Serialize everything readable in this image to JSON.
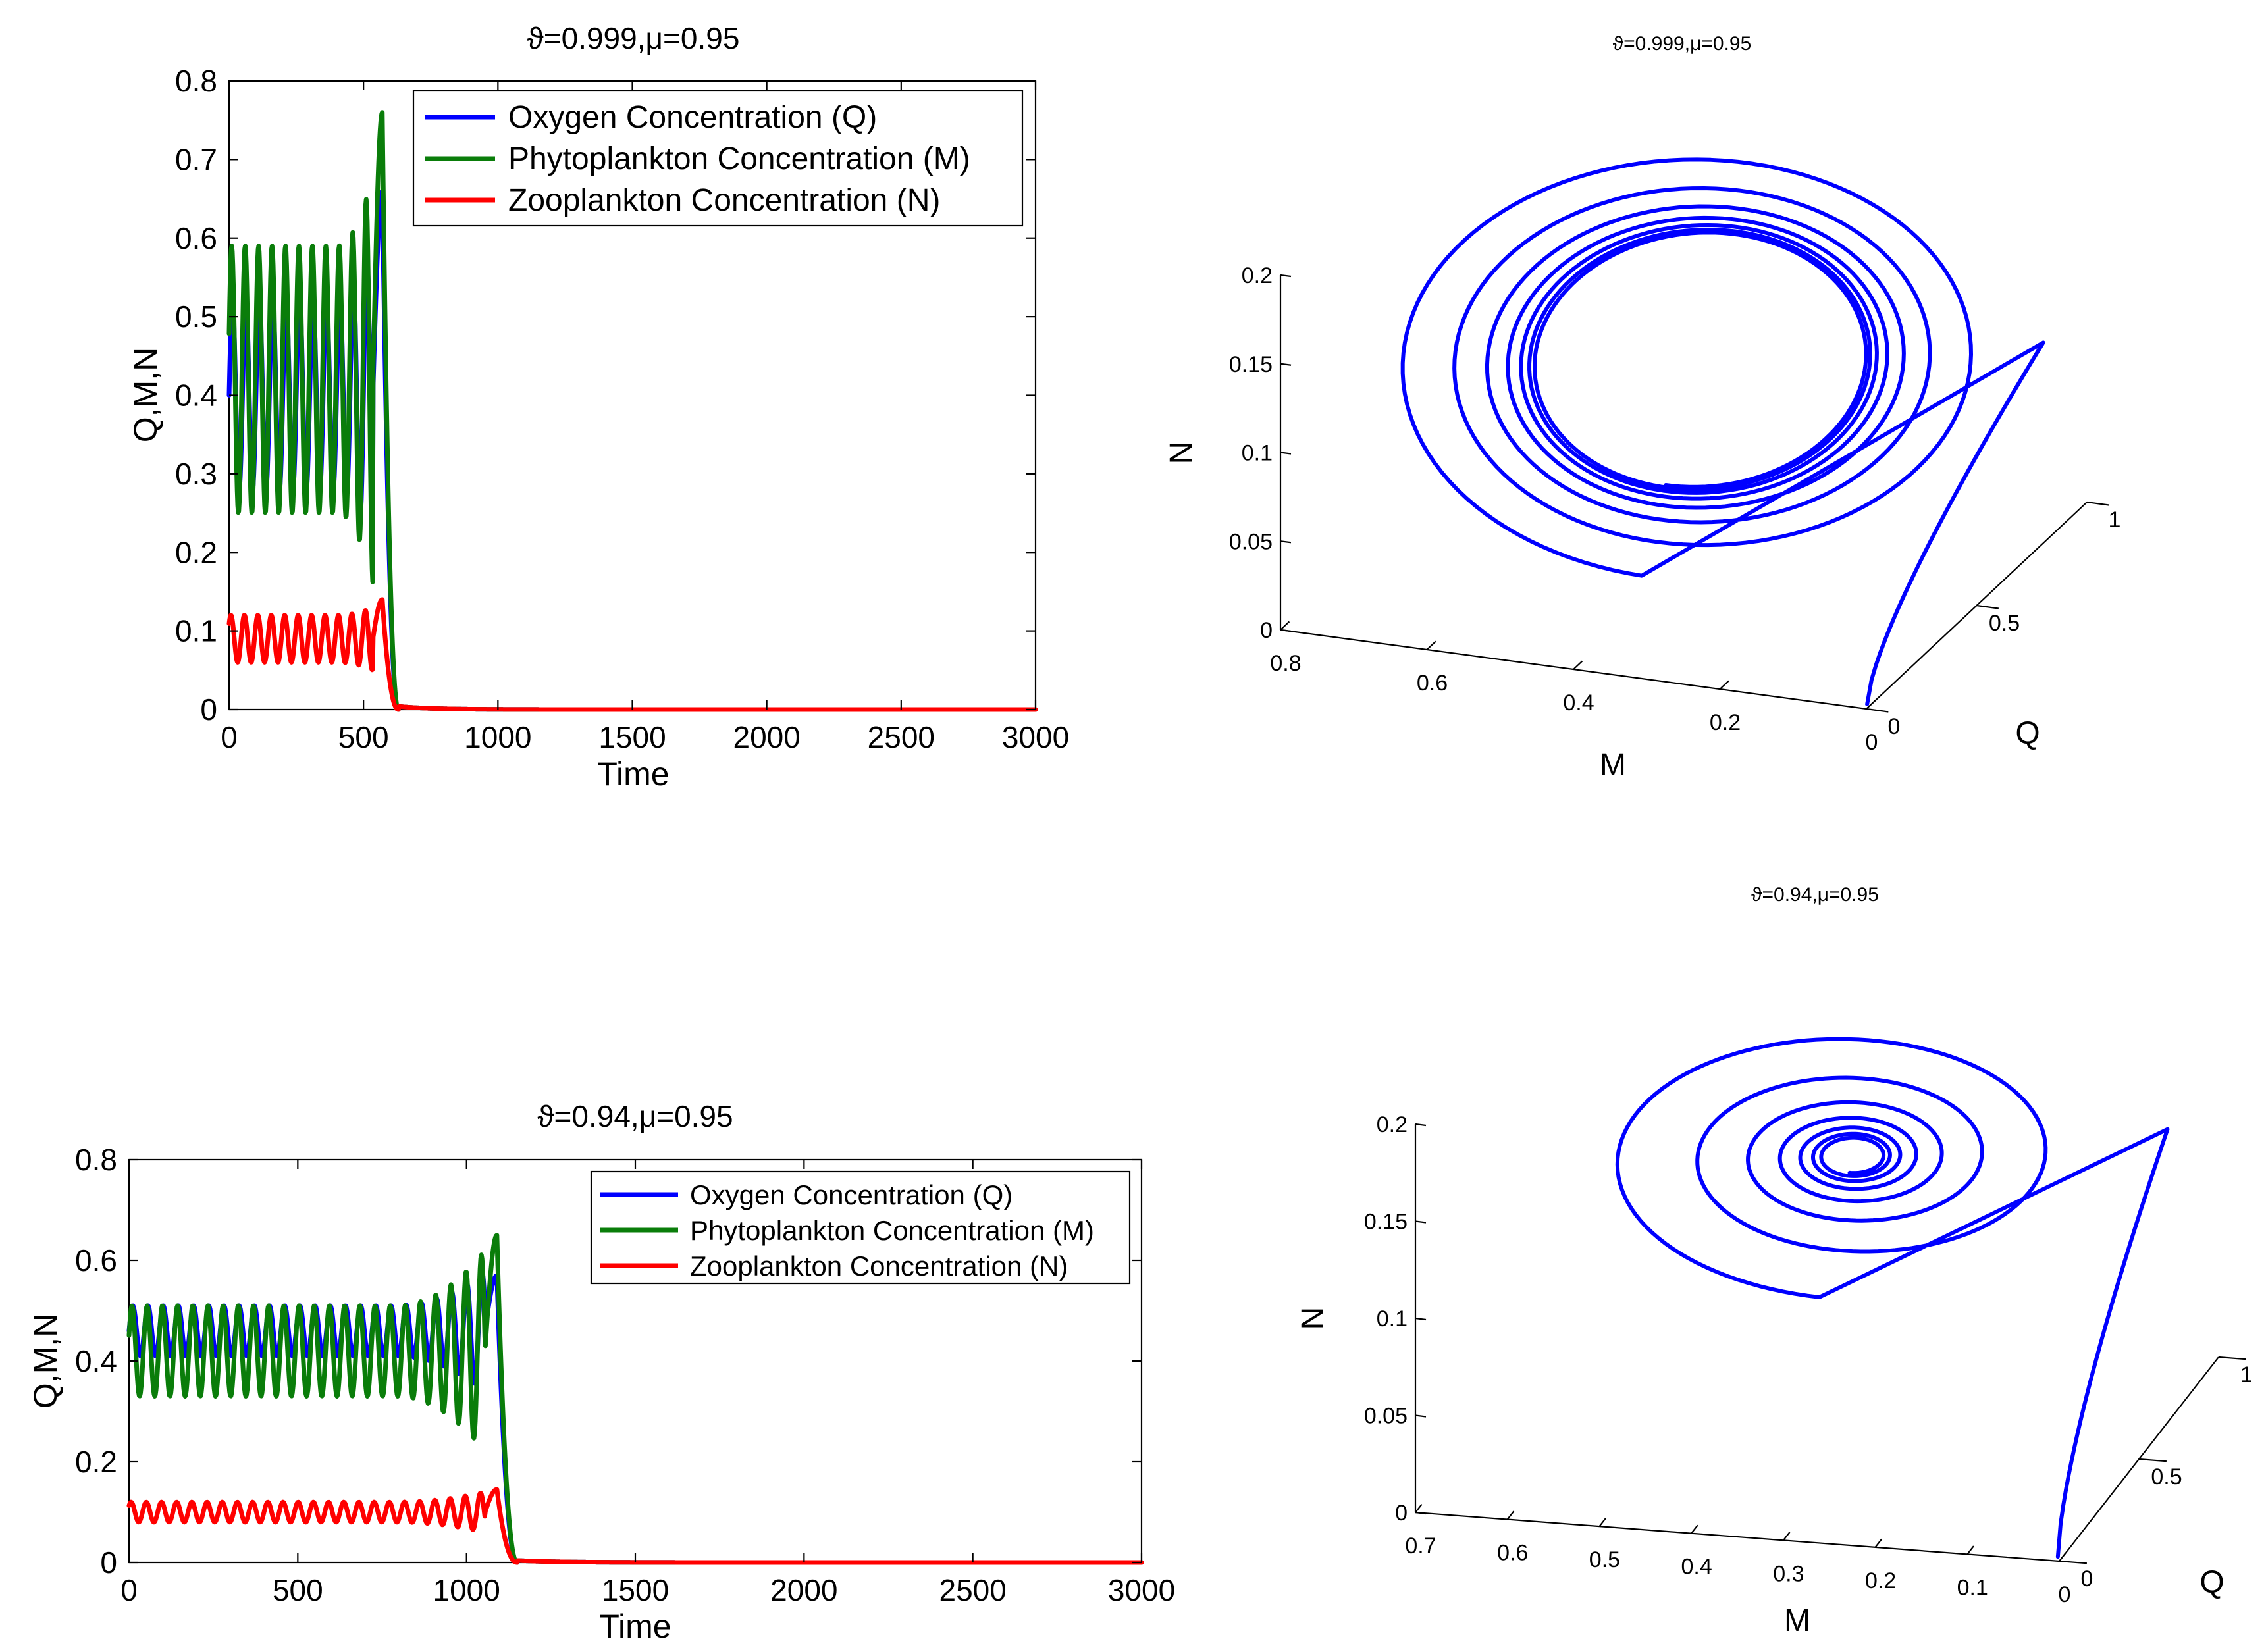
{
  "colors": {
    "oxygen": "#0000ff",
    "phyto": "#0a7d0a",
    "zoo": "#ff0000",
    "trajectory": "#0000ff"
  },
  "chart_data": [
    {
      "id": "ts_top",
      "type": "line",
      "title": "ϑ=0.999,μ=0.95",
      "xlabel": "Time",
      "ylabel": "Q,M,N",
      "xlim": [
        0,
        3000
      ],
      "ylim": [
        0,
        0.8
      ],
      "xticks": [
        0,
        500,
        1000,
        1500,
        2000,
        2500,
        3000
      ],
      "yticks": [
        0,
        0.1,
        0.2,
        0.3,
        0.4,
        0.5,
        0.6,
        0.7,
        0.8
      ],
      "legend_position": "top-right",
      "collapse_time": 590,
      "series": [
        {
          "key": "oxygen",
          "name": "Oxygen Concentration (Q)",
          "base": 0.4,
          "amp0": 0.12,
          "amp1": 0.2,
          "period": 50,
          "spike": 0.66
        },
        {
          "key": "phyto",
          "name": "Phytoplankton Concentration (M)",
          "base": 0.42,
          "amp0": 0.17,
          "amp1": 0.26,
          "period": 50,
          "spike": 0.76
        },
        {
          "key": "zoo",
          "name": "Zooplankton Concentration (N)",
          "base": 0.09,
          "amp0": 0.03,
          "amp1": 0.04,
          "period": 50,
          "spike": 0.14
        }
      ]
    },
    {
      "id": "phase_top",
      "type": "line3d",
      "title": "ϑ=0.999,μ=0.95",
      "xlabel": "M",
      "ylabel": "Q",
      "zlabel": "N",
      "m_ticks": [
        0,
        0.2,
        0.4,
        0.6,
        0.8
      ],
      "q_ticks": [
        0,
        0.5,
        1
      ],
      "n_ticks": [
        0,
        0.05,
        0.1,
        0.15,
        0.2
      ],
      "m_tick_labels": [
        "0",
        "0.2",
        "0.4",
        "0.6",
        "0.8"
      ],
      "q_tick_labels": [
        "0",
        "0.5",
        "1"
      ],
      "n_tick_labels": [
        "0",
        "0.05",
        "0.1",
        "0.15",
        "0.2"
      ],
      "description": "trajectory spirals inward to a limit cycle then drops to origin",
      "cycle_center": [
        0.37,
        0.48,
        0.12
      ],
      "cycle_radius": [
        0.21,
        0.26,
        0.05
      ],
      "outer_radius": [
        0.42,
        0.45,
        0.09
      ]
    },
    {
      "id": "ts_bottom",
      "type": "line",
      "title": "ϑ=0.94,μ=0.95",
      "xlabel": "Time",
      "ylabel": "Q,M,N",
      "xlim": [
        0,
        3000
      ],
      "ylim": [
        0,
        0.8
      ],
      "xticks": [
        0,
        500,
        1000,
        1500,
        2000,
        2500,
        3000
      ],
      "yticks": [
        0,
        0.2,
        0.4,
        0.6,
        0.8
      ],
      "legend_position": "top-right",
      "collapse_time": 1110,
      "series": [
        {
          "key": "oxygen",
          "name": "Oxygen Concentration (Q)",
          "base": 0.46,
          "amp0": 0.05,
          "amp1": 0.12,
          "period": 45,
          "spike": 0.57
        },
        {
          "key": "phyto",
          "name": "Phytoplankton Concentration (M)",
          "base": 0.42,
          "amp0": 0.09,
          "amp1": 0.2,
          "period": 45,
          "spike": 0.65
        },
        {
          "key": "zoo",
          "name": "Zooplankton Concentration (N)",
          "base": 0.1,
          "amp0": 0.02,
          "amp1": 0.04,
          "period": 45,
          "spike": 0.145
        }
      ]
    },
    {
      "id": "phase_bottom",
      "type": "line3d",
      "title": "ϑ=0.94,μ=0.95",
      "xlabel": "M",
      "ylabel": "Q",
      "zlabel": "N",
      "m_ticks": [
        0,
        0.1,
        0.2,
        0.3,
        0.4,
        0.5,
        0.6,
        0.7
      ],
      "q_ticks": [
        0,
        0.5,
        1
      ],
      "n_ticks": [
        0,
        0.05,
        0.1,
        0.15,
        0.2
      ],
      "m_tick_labels": [
        "0",
        "0.1",
        "0.2",
        "0.3",
        "0.4",
        "0.5",
        "0.6",
        "0.7"
      ],
      "q_tick_labels": [
        "0",
        "0.5",
        "1"
      ],
      "n_tick_labels": [
        "0",
        "0.05",
        "0.1",
        "0.15",
        "0.2"
      ],
      "description": "trajectory spirals into a stable focus then drops to origin",
      "cycle_center": [
        0.31,
        0.5,
        0.145
      ],
      "cycle_radius": [
        0.02,
        0.03,
        0.004
      ],
      "outer_radius": [
        0.28,
        0.36,
        0.05
      ]
    }
  ]
}
